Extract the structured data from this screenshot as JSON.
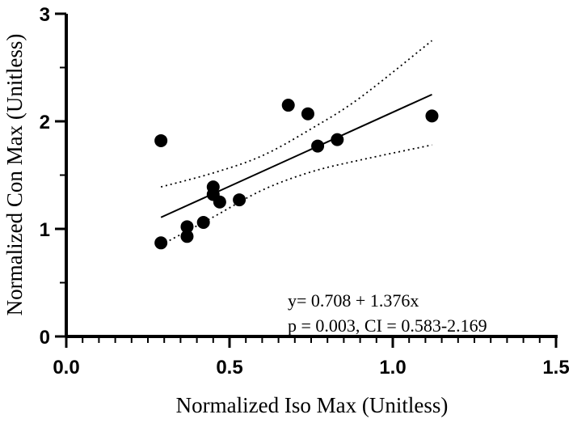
{
  "chart_data": {
    "type": "scatter",
    "title": "",
    "xlabel": "Normalized Iso Max (Unitless)",
    "ylabel": "Normalized Con Max (Unitless)",
    "xlim": [
      0,
      1.5
    ],
    "ylim": [
      0,
      3
    ],
    "x_ticks": [
      "0.0",
      "0.5",
      "1.0",
      "1.5"
    ],
    "y_ticks": [
      "0",
      "1",
      "2",
      "3"
    ],
    "grid": false,
    "points": [
      {
        "x": 0.29,
        "y": 1.82
      },
      {
        "x": 0.29,
        "y": 0.87
      },
      {
        "x": 0.37,
        "y": 1.02
      },
      {
        "x": 0.37,
        "y": 0.93
      },
      {
        "x": 0.42,
        "y": 1.06
      },
      {
        "x": 0.45,
        "y": 1.39
      },
      {
        "x": 0.45,
        "y": 1.32
      },
      {
        "x": 0.47,
        "y": 1.25
      },
      {
        "x": 0.53,
        "y": 1.27
      },
      {
        "x": 0.68,
        "y": 2.15
      },
      {
        "x": 0.74,
        "y": 2.07
      },
      {
        "x": 0.77,
        "y": 1.77
      },
      {
        "x": 0.83,
        "y": 1.83
      },
      {
        "x": 1.12,
        "y": 2.05
      }
    ],
    "fit": {
      "intercept": 0.708,
      "slope": 1.376,
      "x_range": [
        0.29,
        1.12
      ],
      "ci_upper": [
        [
          0.29,
          1.39
        ],
        [
          0.45,
          1.52
        ],
        [
          0.6,
          1.68
        ],
        [
          0.75,
          1.93
        ],
        [
          0.9,
          2.22
        ],
        [
          1.12,
          2.75
        ]
      ],
      "ci_lower": [
        [
          0.29,
          0.85
        ],
        [
          0.45,
          1.11
        ],
        [
          0.6,
          1.36
        ],
        [
          0.75,
          1.53
        ],
        [
          0.9,
          1.64
        ],
        [
          1.12,
          1.78
        ]
      ]
    },
    "annotations": [
      "y= 0.708 + 1.376x",
      "p = 0.003, CI = 0.583-2.169"
    ]
  }
}
